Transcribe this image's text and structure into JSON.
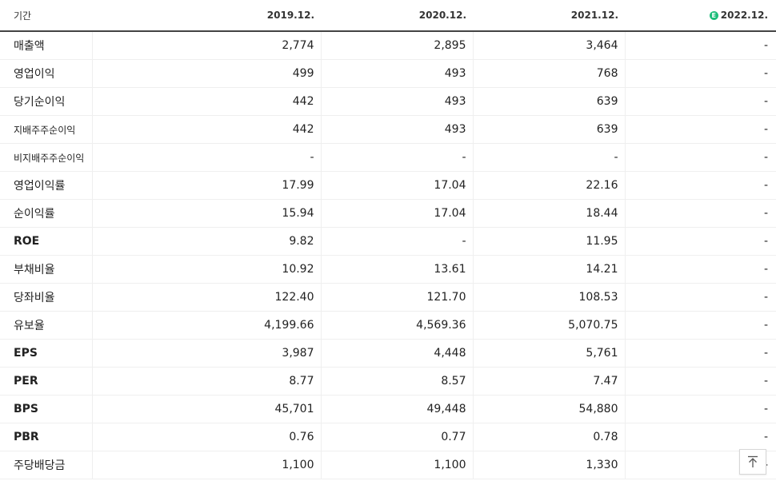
{
  "header": {
    "period_label": "기간",
    "columns": [
      "2019.12.",
      "2020.12.",
      "2021.12.",
      "2022.12."
    ],
    "estimate_badge": "E"
  },
  "rows": [
    {
      "label": "매출액",
      "values": [
        "2,774",
        "2,895",
        "3,464",
        "-"
      ]
    },
    {
      "label": "영업이익",
      "values": [
        "499",
        "493",
        "768",
        "-"
      ]
    },
    {
      "label": "당기순이익",
      "values": [
        "442",
        "493",
        "639",
        "-"
      ]
    },
    {
      "label": "지배주주순이익",
      "values": [
        "442",
        "493",
        "639",
        "-"
      ]
    },
    {
      "label": "비지배주주순이익",
      "values": [
        "-",
        "-",
        "-",
        "-"
      ]
    },
    {
      "label": "영업이익률",
      "values": [
        "17.99",
        "17.04",
        "22.16",
        "-"
      ]
    },
    {
      "label": "순이익률",
      "values": [
        "15.94",
        "17.04",
        "18.44",
        "-"
      ]
    },
    {
      "label": "ROE",
      "values": [
        "9.82",
        "-",
        "11.95",
        "-"
      ]
    },
    {
      "label": "부채비율",
      "values": [
        "10.92",
        "13.61",
        "14.21",
        "-"
      ]
    },
    {
      "label": "당좌비율",
      "values": [
        "122.40",
        "121.70",
        "108.53",
        "-"
      ]
    },
    {
      "label": "유보율",
      "values": [
        "4,199.66",
        "4,569.36",
        "5,070.75",
        "-"
      ]
    },
    {
      "label": "EPS",
      "values": [
        "3,987",
        "4,448",
        "5,761",
        "-"
      ]
    },
    {
      "label": "PER",
      "values": [
        "8.77",
        "8.57",
        "7.47",
        "-"
      ]
    },
    {
      "label": "BPS",
      "values": [
        "45,701",
        "49,448",
        "54,880",
        "-"
      ]
    },
    {
      "label": "PBR",
      "values": [
        "0.76",
        "0.77",
        "0.78",
        "-"
      ]
    },
    {
      "label": "주당배당금",
      "values": [
        "1,100",
        "1,100",
        "1,330",
        "-"
      ]
    }
  ],
  "colors": {
    "estimate_badge": "#1dbd7a",
    "header_rule": "#444444",
    "group_rule": "#c8c8c8",
    "cell_rule": "#efefef"
  },
  "icons": {
    "scroll_top": "arrow-up-to-line-icon",
    "estimate": "estimate-e-badge-icon"
  }
}
